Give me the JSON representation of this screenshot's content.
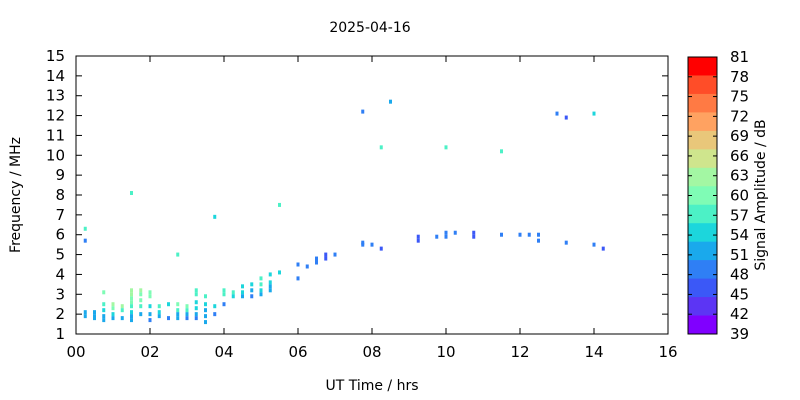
{
  "chart_data": {
    "type": "scatter",
    "title": "2025-04-16",
    "xlabel": "UT Time / hrs",
    "ylabel": "Frequency / MHz",
    "xlim": [
      0,
      16
    ],
    "ylim": [
      1,
      15
    ],
    "xticks": [
      "00",
      "02",
      "04",
      "06",
      "08",
      "10",
      "12",
      "14",
      "16"
    ],
    "yticks": [
      "1",
      "2",
      "3",
      "4",
      "5",
      "6",
      "7",
      "8",
      "9",
      "10",
      "11",
      "12",
      "13",
      "14",
      "15"
    ],
    "grid": false,
    "colorbar": {
      "label": "Signal Amplitude / dB",
      "ticks": [
        "81",
        "78",
        "75",
        "72",
        "69",
        "66",
        "63",
        "60",
        "57",
        "54",
        "51",
        "48",
        "45",
        "42",
        "39"
      ],
      "colors": [
        "#ff0000",
        "#ff4d28",
        "#ff7a44",
        "#ffa261",
        "#e9c77a",
        "#cfe58d",
        "#a3f7a3",
        "#7ffcb5",
        "#4cf1c6",
        "#1cd6dc",
        "#1aa9ec",
        "#2f7ff5",
        "#3b58f7",
        "#5c35f4",
        "#8000ff"
      ]
    },
    "points": [
      {
        "x": 0.25,
        "y": 6.3,
        "a": 57
      },
      {
        "x": 0.25,
        "y": 5.7,
        "a": 48
      },
      {
        "x": 0.25,
        "y": 2.1,
        "a": 51
      },
      {
        "x": 0.25,
        "y": 1.9,
        "a": 51
      },
      {
        "x": 0.5,
        "y": 2.1,
        "a": 51
      },
      {
        "x": 0.5,
        "y": 1.9,
        "a": 52
      },
      {
        "x": 0.5,
        "y": 1.8,
        "a": 51
      },
      {
        "x": 0.75,
        "y": 3.1,
        "a": 60
      },
      {
        "x": 0.75,
        "y": 2.5,
        "a": 57
      },
      {
        "x": 0.75,
        "y": 2.2,
        "a": 54
      },
      {
        "x": 0.75,
        "y": 1.9,
        "a": 51
      },
      {
        "x": 0.75,
        "y": 1.7,
        "a": 51
      },
      {
        "x": 1.0,
        "y": 2.5,
        "a": 63
      },
      {
        "x": 1.0,
        "y": 2.3,
        "a": 60
      },
      {
        "x": 1.0,
        "y": 2.0,
        "a": 54
      },
      {
        "x": 1.0,
        "y": 1.8,
        "a": 51
      },
      {
        "x": 1.25,
        "y": 2.4,
        "a": 63
      },
      {
        "x": 1.25,
        "y": 2.2,
        "a": 57
      },
      {
        "x": 1.25,
        "y": 1.8,
        "a": 51
      },
      {
        "x": 1.5,
        "y": 8.1,
        "a": 57
      },
      {
        "x": 1.5,
        "y": 3.2,
        "a": 63
      },
      {
        "x": 1.5,
        "y": 3.0,
        "a": 63
      },
      {
        "x": 1.5,
        "y": 2.8,
        "a": 60
      },
      {
        "x": 1.5,
        "y": 2.6,
        "a": 60
      },
      {
        "x": 1.5,
        "y": 2.4,
        "a": 57
      },
      {
        "x": 1.5,
        "y": 2.1,
        "a": 54
      },
      {
        "x": 1.5,
        "y": 1.9,
        "a": 51
      },
      {
        "x": 1.5,
        "y": 1.7,
        "a": 51
      },
      {
        "x": 1.75,
        "y": 3.2,
        "a": 63
      },
      {
        "x": 1.75,
        "y": 3.0,
        "a": 60
      },
      {
        "x": 1.75,
        "y": 2.7,
        "a": 60
      },
      {
        "x": 1.75,
        "y": 2.4,
        "a": 57
      },
      {
        "x": 1.75,
        "y": 2.0,
        "a": 51
      },
      {
        "x": 2.0,
        "y": 3.1,
        "a": 60
      },
      {
        "x": 2.0,
        "y": 2.9,
        "a": 60
      },
      {
        "x": 2.0,
        "y": 2.4,
        "a": 54
      },
      {
        "x": 2.0,
        "y": 2.0,
        "a": 51
      },
      {
        "x": 2.0,
        "y": 1.7,
        "a": 48
      },
      {
        "x": 2.25,
        "y": 2.4,
        "a": 57
      },
      {
        "x": 2.25,
        "y": 2.1,
        "a": 54
      },
      {
        "x": 2.25,
        "y": 1.9,
        "a": 51
      },
      {
        "x": 2.5,
        "y": 2.5,
        "a": 54
      },
      {
        "x": 2.5,
        "y": 1.8,
        "a": 48
      },
      {
        "x": 2.75,
        "y": 5.0,
        "a": 57
      },
      {
        "x": 2.75,
        "y": 2.5,
        "a": 60
      },
      {
        "x": 2.75,
        "y": 2.2,
        "a": 57
      },
      {
        "x": 2.75,
        "y": 2.0,
        "a": 51
      },
      {
        "x": 2.75,
        "y": 1.8,
        "a": 51
      },
      {
        "x": 3.0,
        "y": 2.4,
        "a": 60
      },
      {
        "x": 3.0,
        "y": 2.2,
        "a": 57
      },
      {
        "x": 3.0,
        "y": 2.0,
        "a": 51
      },
      {
        "x": 3.0,
        "y": 1.8,
        "a": 48
      },
      {
        "x": 3.25,
        "y": 3.2,
        "a": 57
      },
      {
        "x": 3.25,
        "y": 3.0,
        "a": 57
      },
      {
        "x": 3.25,
        "y": 2.6,
        "a": 54
      },
      {
        "x": 3.25,
        "y": 2.3,
        "a": 54
      },
      {
        "x": 3.25,
        "y": 2.0,
        "a": 51
      },
      {
        "x": 3.25,
        "y": 1.8,
        "a": 48
      },
      {
        "x": 3.5,
        "y": 2.9,
        "a": 57
      },
      {
        "x": 3.5,
        "y": 2.5,
        "a": 54
      },
      {
        "x": 3.5,
        "y": 2.2,
        "a": 51
      },
      {
        "x": 3.5,
        "y": 1.9,
        "a": 51
      },
      {
        "x": 3.5,
        "y": 1.6,
        "a": 51
      },
      {
        "x": 3.75,
        "y": 6.9,
        "a": 54
      },
      {
        "x": 3.75,
        "y": 2.4,
        "a": 54
      },
      {
        "x": 3.75,
        "y": 2.0,
        "a": 48
      },
      {
        "x": 4.0,
        "y": 3.2,
        "a": 57
      },
      {
        "x": 4.0,
        "y": 3.0,
        "a": 57
      },
      {
        "x": 4.0,
        "y": 2.5,
        "a": 48
      },
      {
        "x": 4.25,
        "y": 3.1,
        "a": 57
      },
      {
        "x": 4.25,
        "y": 2.9,
        "a": 54
      },
      {
        "x": 4.5,
        "y": 3.4,
        "a": 54
      },
      {
        "x": 4.5,
        "y": 3.1,
        "a": 54
      },
      {
        "x": 4.5,
        "y": 2.9,
        "a": 51
      },
      {
        "x": 4.75,
        "y": 3.5,
        "a": 54
      },
      {
        "x": 4.75,
        "y": 3.2,
        "a": 51
      },
      {
        "x": 4.75,
        "y": 2.9,
        "a": 48
      },
      {
        "x": 5.0,
        "y": 3.8,
        "a": 57
      },
      {
        "x": 5.0,
        "y": 3.5,
        "a": 57
      },
      {
        "x": 5.0,
        "y": 3.2,
        "a": 54
      },
      {
        "x": 5.0,
        "y": 3.0,
        "a": 51
      },
      {
        "x": 5.25,
        "y": 4.0,
        "a": 54
      },
      {
        "x": 5.25,
        "y": 3.6,
        "a": 54
      },
      {
        "x": 5.25,
        "y": 3.4,
        "a": 51
      },
      {
        "x": 5.25,
        "y": 3.2,
        "a": 51
      },
      {
        "x": 5.5,
        "y": 7.5,
        "a": 57
      },
      {
        "x": 5.5,
        "y": 4.1,
        "a": 54
      },
      {
        "x": 6.0,
        "y": 4.5,
        "a": 48
      },
      {
        "x": 6.0,
        "y": 3.8,
        "a": 48
      },
      {
        "x": 6.25,
        "y": 4.4,
        "a": 48
      },
      {
        "x": 6.5,
        "y": 4.8,
        "a": 48
      },
      {
        "x": 6.5,
        "y": 4.6,
        "a": 48
      },
      {
        "x": 6.75,
        "y": 5.0,
        "a": 45
      },
      {
        "x": 6.75,
        "y": 4.8,
        "a": 45
      },
      {
        "x": 7.0,
        "y": 5.0,
        "a": 48
      },
      {
        "x": 7.75,
        "y": 12.2,
        "a": 48
      },
      {
        "x": 7.75,
        "y": 5.6,
        "a": 48
      },
      {
        "x": 7.75,
        "y": 5.5,
        "a": 48
      },
      {
        "x": 8.0,
        "y": 5.5,
        "a": 48
      },
      {
        "x": 8.25,
        "y": 10.4,
        "a": 57
      },
      {
        "x": 8.25,
        "y": 5.3,
        "a": 45
      },
      {
        "x": 8.5,
        "y": 12.7,
        "a": 51
      },
      {
        "x": 9.25,
        "y": 5.9,
        "a": 45
      },
      {
        "x": 9.25,
        "y": 5.7,
        "a": 45
      },
      {
        "x": 9.75,
        "y": 5.9,
        "a": 48
      },
      {
        "x": 10.0,
        "y": 10.4,
        "a": 57
      },
      {
        "x": 10.0,
        "y": 6.1,
        "a": 48
      },
      {
        "x": 10.0,
        "y": 5.9,
        "a": 48
      },
      {
        "x": 10.25,
        "y": 6.1,
        "a": 48
      },
      {
        "x": 10.75,
        "y": 6.1,
        "a": 45
      },
      {
        "x": 10.75,
        "y": 5.9,
        "a": 45
      },
      {
        "x": 11.5,
        "y": 10.2,
        "a": 57
      },
      {
        "x": 11.5,
        "y": 6.0,
        "a": 48
      },
      {
        "x": 12.0,
        "y": 6.0,
        "a": 48
      },
      {
        "x": 12.25,
        "y": 6.0,
        "a": 48
      },
      {
        "x": 12.5,
        "y": 6.0,
        "a": 48
      },
      {
        "x": 12.5,
        "y": 5.7,
        "a": 48
      },
      {
        "x": 13.0,
        "y": 12.1,
        "a": 48
      },
      {
        "x": 13.25,
        "y": 11.9,
        "a": 45
      },
      {
        "x": 13.25,
        "y": 5.6,
        "a": 48
      },
      {
        "x": 14.0,
        "y": 12.1,
        "a": 54
      },
      {
        "x": 14.0,
        "y": 5.5,
        "a": 48
      },
      {
        "x": 14.25,
        "y": 5.3,
        "a": 45
      }
    ]
  }
}
